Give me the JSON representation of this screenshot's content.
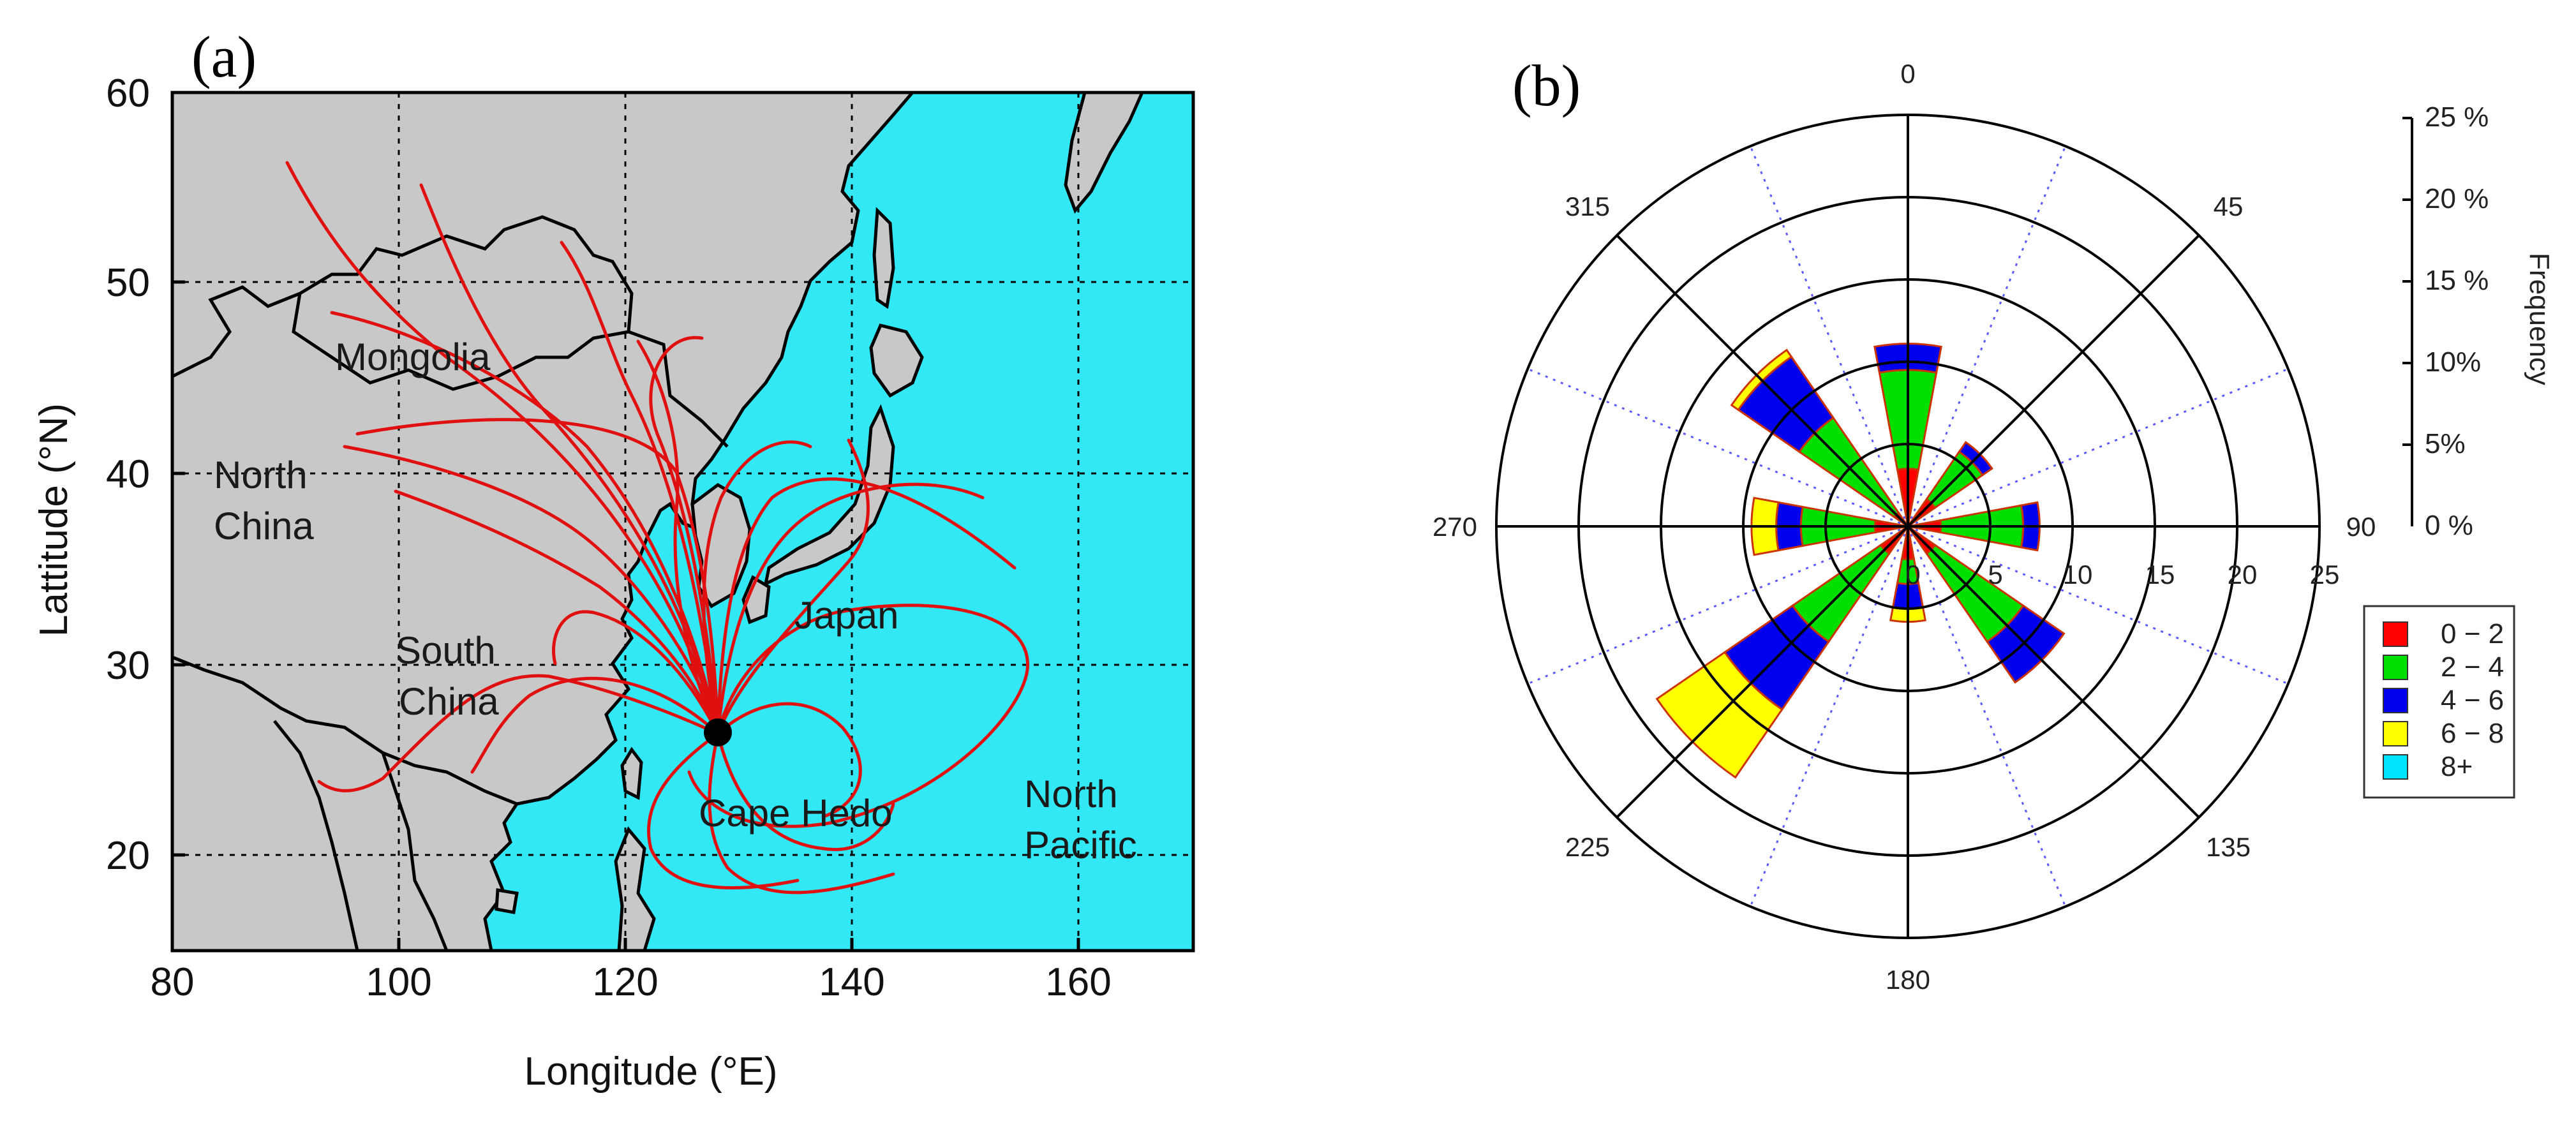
{
  "panels": {
    "a": {
      "label": "(a)",
      "axes": {
        "xlabel": "Longitude (°E)",
        "ylabel": "Lattitude (°N)",
        "xticks": [
          "80",
          "100",
          "120",
          "140",
          "160"
        ],
        "yticks": [
          "20",
          "30",
          "40",
          "50",
          "60"
        ],
        "xlim": [
          80,
          170
        ],
        "ylim": [
          15,
          60
        ]
      },
      "regions": {
        "mongolia": "Mongolia",
        "north_china_1": "North",
        "north_china_2": "China",
        "south_china_1": "South",
        "south_china_2": "China",
        "japan": "Japan",
        "cape_hedo": "Cape Hedo",
        "north_pacific_1": "North",
        "north_pacific_2": "Pacific"
      },
      "colors": {
        "land": "#c8c8c8",
        "sea": "#33e8f5",
        "trajectory": "#e01010",
        "site": "#000000"
      },
      "site": {
        "name": "Cape Hedo",
        "lon": 128.2,
        "lat": 26.8
      }
    },
    "b": {
      "label": "(b)",
      "directions": [
        "0",
        "45",
        "90",
        "135",
        "180",
        "225",
        "270",
        "315"
      ],
      "speed_ring_labels": [
        "0",
        "5",
        "10",
        "15",
        "20",
        "25"
      ],
      "frequency_axis": {
        "title": "Frequency",
        "ticks": [
          "0 %",
          "5%",
          "10%",
          "15 %",
          "20 %",
          "25 %"
        ]
      },
      "legend": [
        {
          "label": "0 − 2",
          "color": "#ff0000"
        },
        {
          "label": "2 − 4",
          "color": "#00e000"
        },
        {
          "label": "4 − 6",
          "color": "#0000ee"
        },
        {
          "label": "6 − 8",
          "color": "#ffff00"
        },
        {
          "label": "8+",
          "color": "#00e5ff"
        }
      ]
    }
  },
  "chart_data": {
    "type": "polar-bar",
    "title": "",
    "sectors_deg": [
      0,
      22.5,
      45,
      67.5,
      90,
      112.5,
      135,
      157.5,
      180,
      202.5,
      225,
      247.5,
      270,
      292.5,
      315,
      337.5
    ],
    "bins": [
      "0 − 2",
      "2 − 4",
      "4 − 6",
      "6 − 8",
      "8+"
    ],
    "frequency_percent": [
      [
        3.5,
        6.0,
        1.6,
        0,
        0
      ],
      [
        0,
        0,
        0,
        0,
        0
      ],
      [
        2.0,
        3.5,
        0.7,
        0,
        0
      ],
      [
        0,
        0,
        0,
        0,
        0
      ],
      [
        2.0,
        5.0,
        1.0,
        0,
        0
      ],
      [
        0,
        0,
        0,
        0,
        0
      ],
      [
        2.0,
        6.5,
        3.0,
        0,
        0
      ],
      [
        0,
        0,
        0,
        0,
        0
      ],
      [
        2.0,
        1.5,
        1.5,
        0.8,
        0
      ],
      [
        0,
        0,
        0,
        0,
        0
      ],
      [
        2.0,
        6.5,
        5.0,
        5.0,
        0
      ],
      [
        0,
        0,
        0,
        0,
        0
      ],
      [
        2.0,
        4.5,
        1.5,
        1.5,
        0
      ],
      [
        0,
        0,
        0,
        0,
        0
      ],
      [
        1.0,
        7.0,
        4.5,
        0.5,
        0
      ],
      [
        0,
        0,
        0,
        0,
        0
      ]
    ],
    "rlim": [
      0,
      25
    ]
  }
}
